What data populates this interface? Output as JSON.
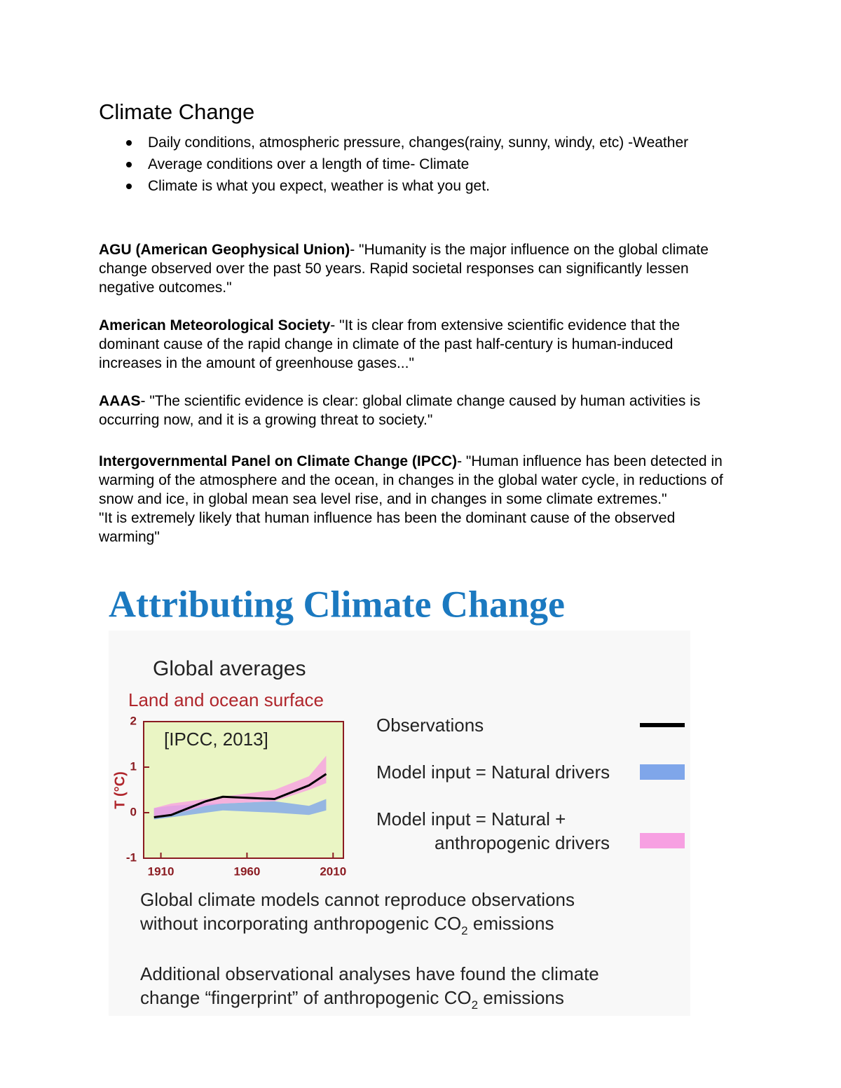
{
  "document": {
    "title": "Climate Change",
    "bullets": [
      "Daily conditions, atmospheric pressure, changes(rainy, sunny, windy, etc) -Weather",
      "Average conditions over a length of time- Climate",
      "Climate is what you expect, weather is what you get."
    ],
    "paragraphs": [
      {
        "lead": "AGU (American Geophysical Union)",
        "text": "- \"Humanity is the major influence on the global climate change observed over the past 50 years. Rapid societal responses can significantly lessen negative outcomes.\""
      },
      {
        "lead": "American Meteorological Society",
        "text": "- \"It is clear from extensive scientific evidence that the dominant cause of the rapid change in climate of the past half-century is human-induced increases in the amount of greenhouse gases...\""
      },
      {
        "lead": "AAAS",
        "text": "- \"The scientific evidence is clear: global climate change caused by human activities is occurring now, and it is a growing threat to society.\""
      },
      {
        "lead": "Intergovernmental Panel on Climate Change (IPCC)",
        "text": "- \"Human influence has been detected in warming of the atmosphere and the ocean, in changes in the global water cycle, in reductions of snow and ice, in global mean sea level rise, and in changes in some climate extremes.\"",
        "extra": "\"It is extremely likely that human influence has been the dominant cause of the observed warming\""
      }
    ]
  },
  "figure": {
    "heading": "Attributing Climate Change",
    "captions": [
      {
        "before": "Global climate models cannot reproduce observations without incorporating anthropogenic CO",
        "sub": "2",
        "after": " emissions"
      },
      {
        "before": "Additional observational analyses have found the climate change “fingerprint” of anthropogenic CO",
        "sub": "2",
        "after": " emissions"
      }
    ]
  },
  "chart_data": {
    "type": "line",
    "title": "Global averages",
    "subtitle": "Land and ocean surface",
    "annotation": "[IPCC, 2013]",
    "y_label": "T (°C)",
    "x": [
      1906,
      1916,
      1936,
      1946,
      1976,
      1996,
      2006
    ],
    "series": [
      {
        "name": "Observations",
        "color": "#000000",
        "values": [
          -0.1,
          -0.05,
          0.25,
          0.35,
          0.3,
          0.6,
          0.85
        ]
      },
      {
        "name": "Model input = Natural drivers",
        "color": "#7fa6ea",
        "low": [
          -0.15,
          -0.1,
          0.0,
          0.05,
          0.0,
          -0.05,
          0.05
        ],
        "high": [
          0.1,
          0.15,
          0.2,
          0.2,
          0.25,
          0.15,
          0.3
        ]
      },
      {
        "name": "Model input = Natural + anthropogenic drivers",
        "color": "#f7a0e2",
        "low": [
          -0.1,
          -0.05,
          0.15,
          0.2,
          0.25,
          0.5,
          0.65
        ],
        "high": [
          0.1,
          0.2,
          0.3,
          0.35,
          0.5,
          0.8,
          1.25
        ]
      }
    ],
    "xlim": [
      1900,
      2016
    ],
    "ylim": [
      -1,
      2
    ],
    "xticks": [
      1910,
      1960,
      2010
    ],
    "yticks": [
      -1,
      0,
      1,
      2
    ],
    "plot_background": "#eaf5c4"
  }
}
